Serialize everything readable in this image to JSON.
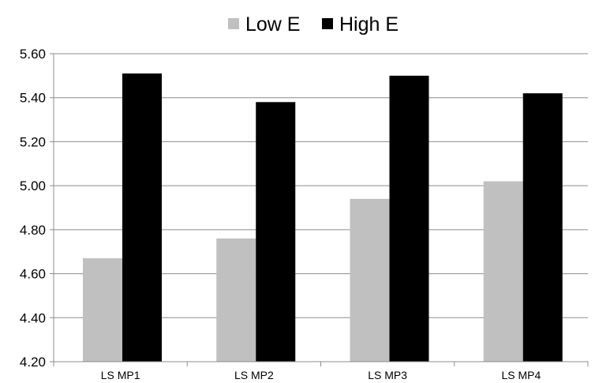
{
  "chart_data": {
    "type": "bar",
    "categories": [
      "LS MP1",
      "LS MP2",
      "LS MP3",
      "LS MP4"
    ],
    "series": [
      {
        "name": "Low E",
        "color": "#c0c0c0",
        "values": [
          4.67,
          4.76,
          4.94,
          5.02
        ]
      },
      {
        "name": "High E",
        "color": "#000000",
        "values": [
          5.51,
          5.38,
          5.5,
          5.42
        ]
      }
    ],
    "title": "",
    "xlabel": "",
    "ylabel": "",
    "ylim": [
      4.2,
      5.6
    ],
    "yticks": [
      "4.20",
      "4.40",
      "4.60",
      "4.80",
      "5.00",
      "5.20",
      "5.40",
      "5.60"
    ],
    "grid": true,
    "legend_position": "top"
  }
}
